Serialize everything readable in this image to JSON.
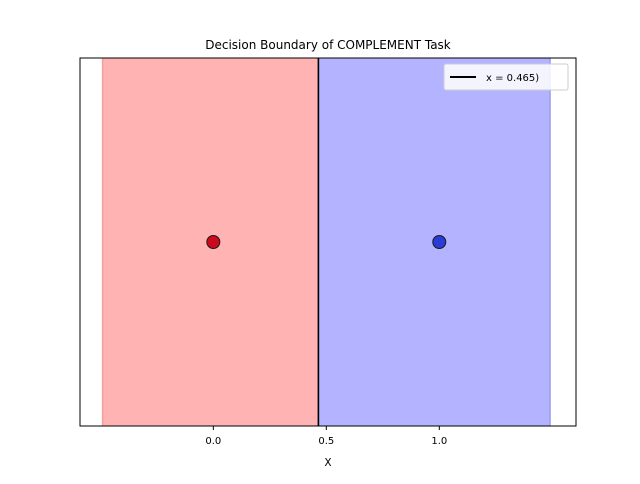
{
  "chart_data": {
    "type": "scatter",
    "title": "Decision Boundary of COMPLEMENT Task",
    "xlabel": "X",
    "ylabel": "",
    "xlim": [
      -0.59,
      1.605
    ],
    "x_ticks": [
      0.0,
      0.5,
      1.0
    ],
    "x_tick_labels": [
      "0.0",
      "0.5",
      "1.0"
    ],
    "y_ticks_visible": false,
    "grid": false,
    "regions": [
      {
        "x0": -0.49,
        "x1": 0.465,
        "color": "#ffb3b3",
        "edge_color": "#f0a0a0"
      },
      {
        "x0": 0.465,
        "x1": 1.49,
        "color": "#b3b3ff",
        "edge_color": "#9a9af0"
      }
    ],
    "boundary": {
      "x": 0.465,
      "color": "#000000",
      "label": "x = 0.465)"
    },
    "points": [
      {
        "x": 0.0,
        "y": 0.5,
        "color": "#cc0a1e"
      },
      {
        "x": 1.0,
        "y": 0.5,
        "color": "#2a3bd6"
      }
    ],
    "legend_position": "top-right"
  }
}
